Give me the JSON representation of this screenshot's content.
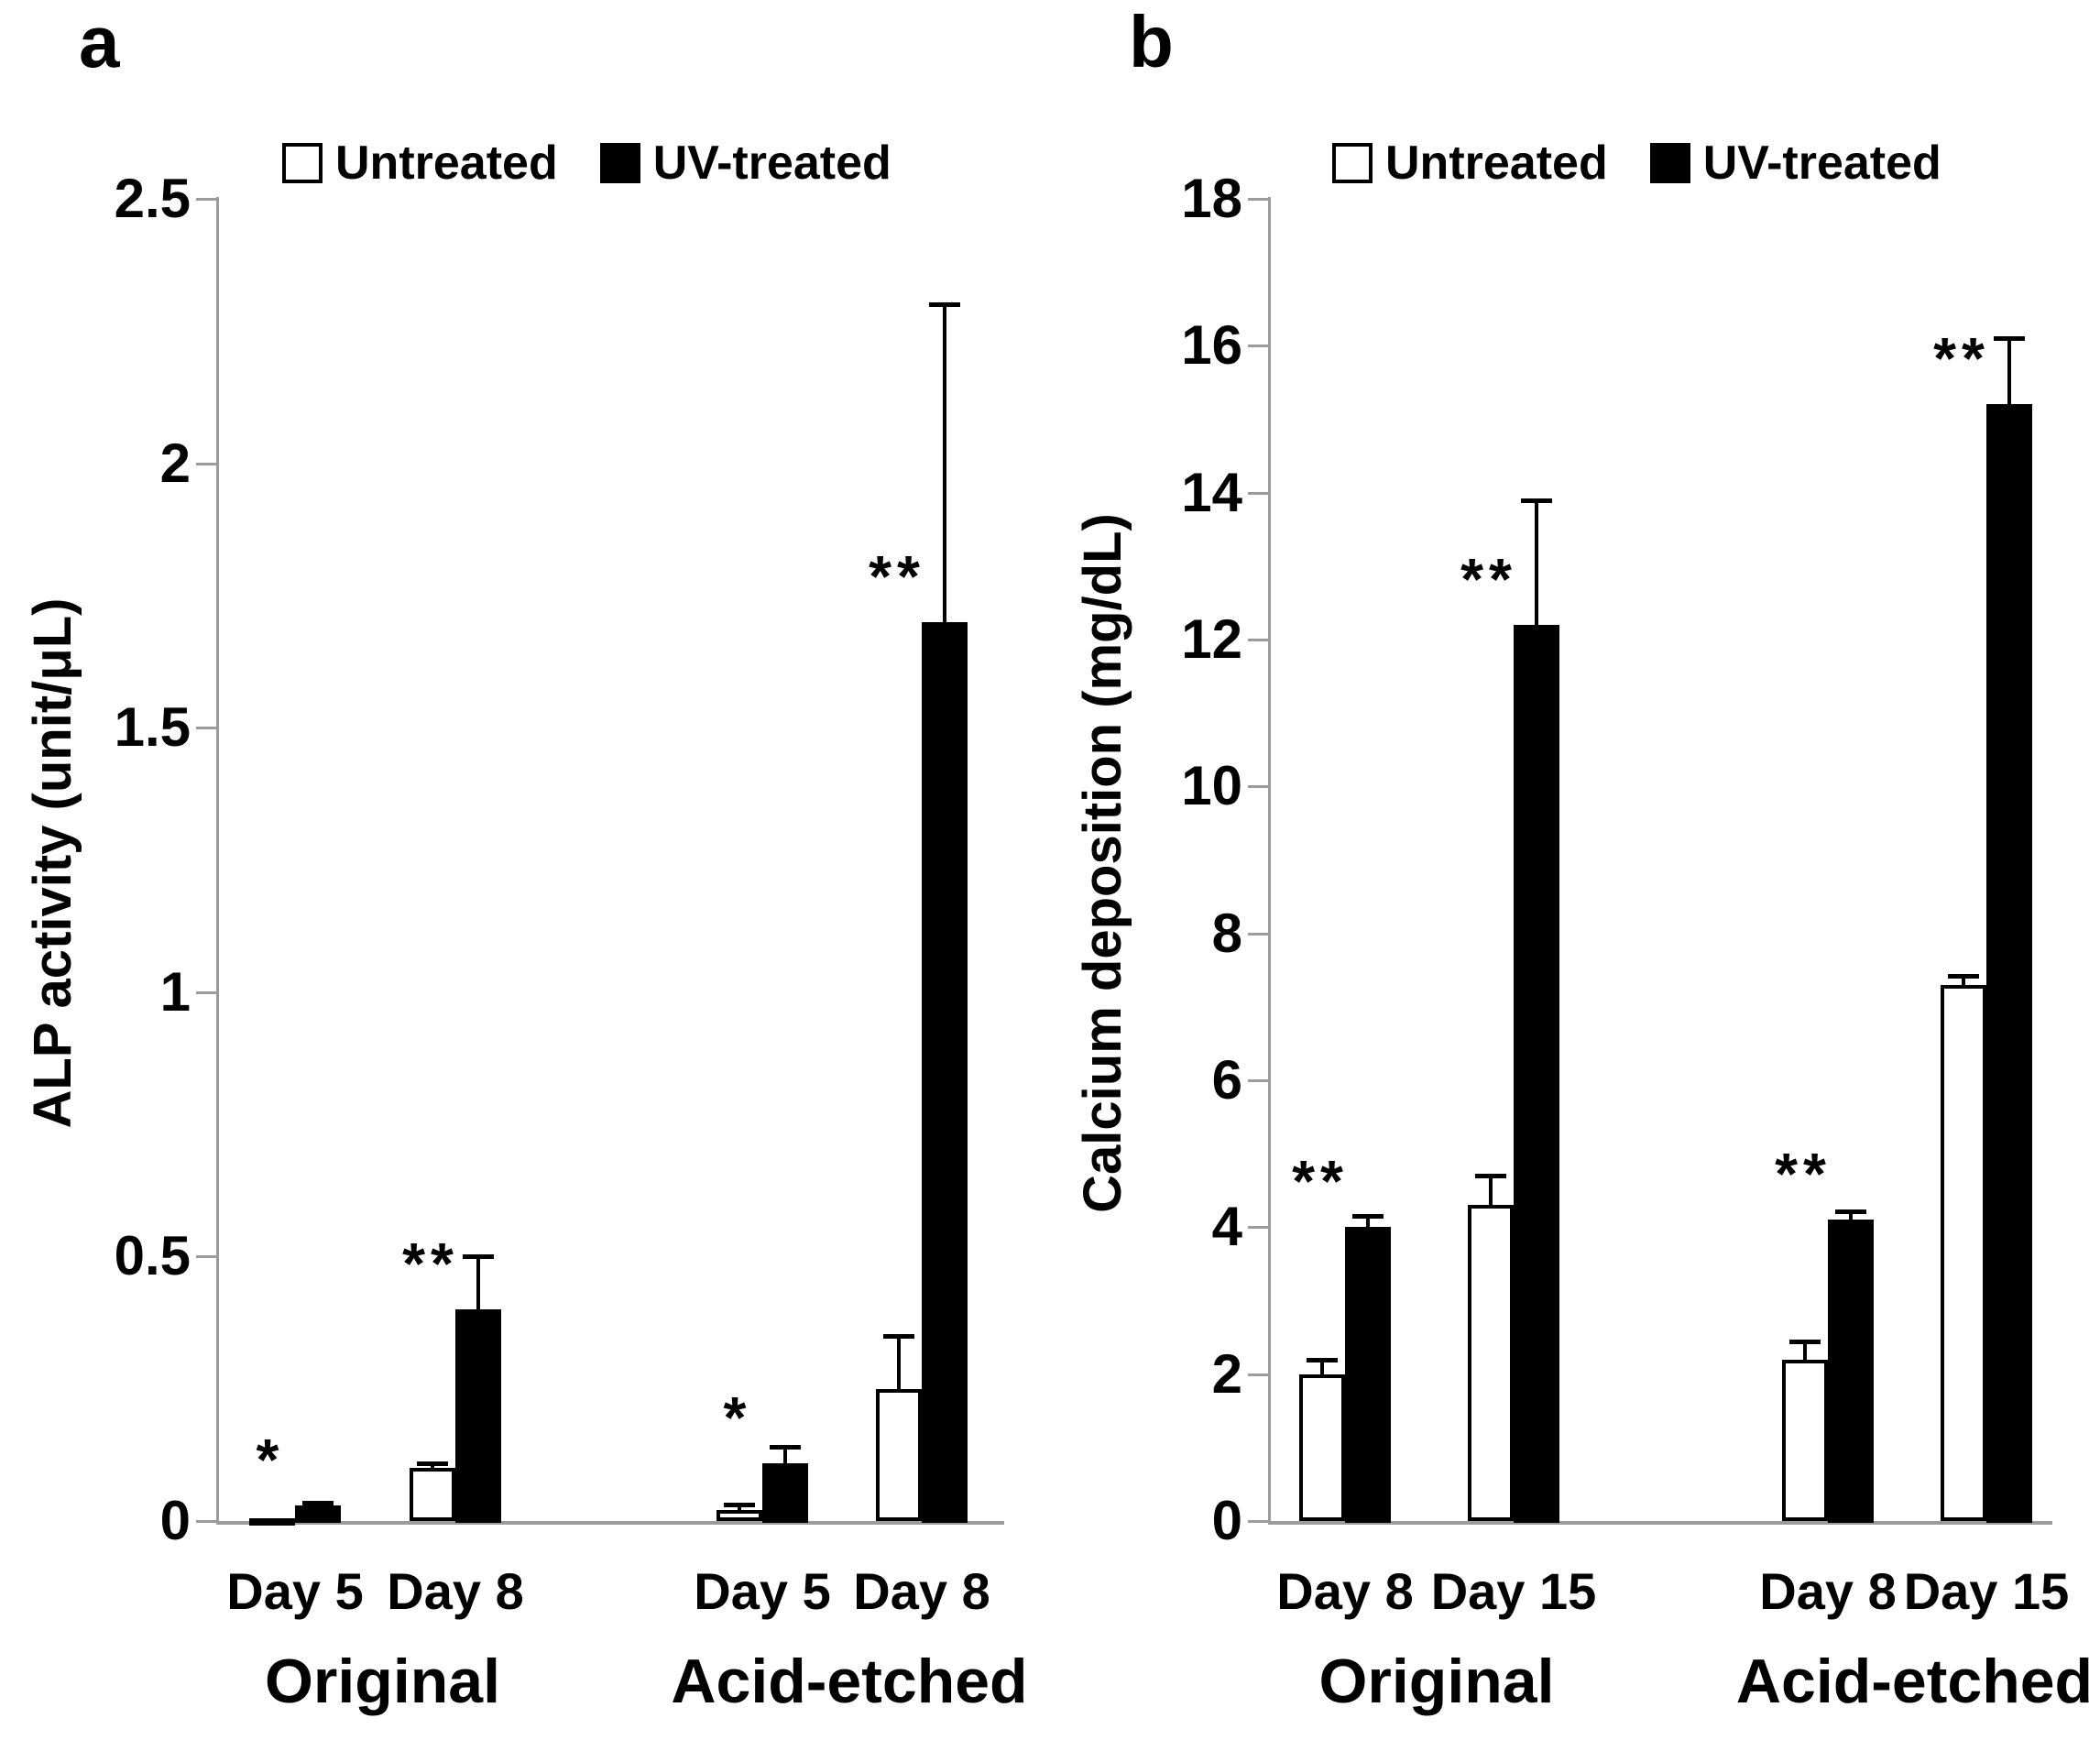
{
  "figure": {
    "panel_labels": [
      "a",
      "b"
    ]
  },
  "chart_data": [
    {
      "type": "bar",
      "panel": "a",
      "title": "",
      "xlabel": "",
      "ylabel": "ALP activity (unit/μL)",
      "ylim": [
        0,
        2.5
      ],
      "ytick_step": 0.5,
      "ytick_labels": [
        "0",
        "0.5",
        "1",
        "1.5",
        "2",
        "2.5"
      ],
      "grid": false,
      "legend_position": "top",
      "axis_color": "#9b9b9b",
      "legend": [
        {
          "label": "Untreated",
          "fill": "#ffffff"
        },
        {
          "label": "UV-treated",
          "fill": "#000000"
        }
      ],
      "groups": [
        "Original",
        "Acid-etched"
      ],
      "categories": [
        "Day 5",
        "Day 8",
        "Day 5",
        "Day 8"
      ],
      "category_group": [
        0,
        0,
        1,
        1
      ],
      "series": [
        {
          "name": "Untreated",
          "fill": "#ffffff",
          "values": [
            0.005,
            0.1,
            0.02,
            0.25
          ],
          "errors": [
            0,
            0.01,
            0.012,
            0.1
          ]
        },
        {
          "name": "UV-treated",
          "fill": "#000000",
          "values": [
            0.03,
            0.4,
            0.11,
            1.7
          ],
          "errors": [
            0.005,
            0.1,
            0.03,
            0.6
          ]
        }
      ],
      "significance": [
        "*",
        "**",
        "*",
        "**"
      ]
    },
    {
      "type": "bar",
      "panel": "b",
      "title": "",
      "xlabel": "",
      "ylabel": "Calcium deposition (mg/dL)",
      "ylim": [
        0,
        18
      ],
      "ytick_step": 2,
      "ytick_labels": [
        "0",
        "2",
        "4",
        "6",
        "8",
        "10",
        "12",
        "14",
        "16",
        "18"
      ],
      "grid": false,
      "legend_position": "top",
      "axis_color": "#9b9b9b",
      "legend": [
        {
          "label": "Untreated",
          "fill": "#ffffff"
        },
        {
          "label": "UV-treated",
          "fill": "#000000"
        }
      ],
      "groups": [
        "Original",
        "Acid-etched"
      ],
      "categories": [
        "Day 8",
        "Day 15",
        "Day 8",
        "Day 15"
      ],
      "category_group": [
        0,
        0,
        1,
        1
      ],
      "series": [
        {
          "name": "Untreated",
          "fill": "#ffffff",
          "values": [
            2.0,
            4.3,
            2.2,
            7.3
          ],
          "errors": [
            0.2,
            0.4,
            0.25,
            0.12
          ]
        },
        {
          "name": "UV-treated",
          "fill": "#000000",
          "values": [
            4.0,
            12.2,
            4.1,
            15.2
          ],
          "errors": [
            0.15,
            1.7,
            0.12,
            0.9
          ]
        }
      ],
      "significance": [
        "**",
        "**",
        "**",
        "**"
      ]
    }
  ]
}
